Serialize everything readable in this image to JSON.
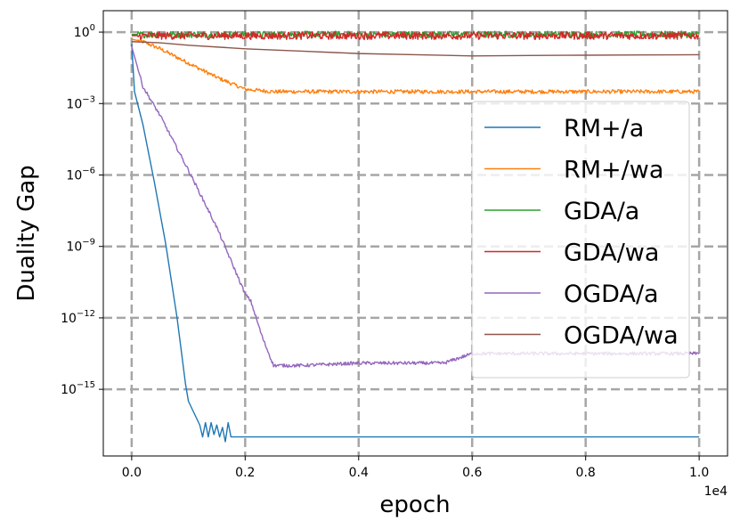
{
  "chart_data": {
    "type": "line",
    "xlabel": "epoch",
    "ylabel": "Duality Gap",
    "x_offset_text": "1e4",
    "yscale": "log",
    "xlim": [
      -0.05,
      1.05
    ],
    "ylim_log10": [
      -17.8,
      0.9
    ],
    "grid": true,
    "legend_placement": "right",
    "x_ticks": [
      {
        "value": 0.0,
        "label": "0.0"
      },
      {
        "value": 0.2,
        "label": "0.2"
      },
      {
        "value": 0.4,
        "label": "0.4"
      },
      {
        "value": 0.6,
        "label": "0.6"
      },
      {
        "value": 0.8,
        "label": "0.8"
      },
      {
        "value": 1.0,
        "label": "1.0"
      }
    ],
    "y_ticks": [
      {
        "exp": 0,
        "base": "10",
        "sup": "0"
      },
      {
        "exp": -3,
        "base": "10",
        "sup": "−3"
      },
      {
        "exp": -6,
        "base": "10",
        "sup": "−6"
      },
      {
        "exp": -9,
        "base": "10",
        "sup": "−9"
      },
      {
        "exp": -12,
        "base": "10",
        "sup": "−12"
      },
      {
        "exp": -15,
        "base": "10",
        "sup": "−15"
      }
    ],
    "series": [
      {
        "name": "RM+/a",
        "color": "#1f77b4",
        "points": [
          [
            0.0,
            -0.5
          ],
          [
            0.005,
            -2.5
          ],
          [
            0.02,
            -3.9
          ],
          [
            0.04,
            -6.3
          ],
          [
            0.06,
            -8.9
          ],
          [
            0.08,
            -12.0
          ],
          [
            0.095,
            -14.8
          ],
          [
            0.1,
            -15.5
          ],
          [
            0.11,
            -16.0
          ],
          [
            0.12,
            -16.5
          ],
          [
            0.125,
            -17.0
          ],
          [
            0.13,
            -16.4
          ],
          [
            0.135,
            -17.0
          ],
          [
            0.14,
            -16.4
          ],
          [
            0.145,
            -16.9
          ],
          [
            0.15,
            -16.5
          ],
          [
            0.155,
            -17.0
          ],
          [
            0.16,
            -16.6
          ],
          [
            0.165,
            -17.2
          ],
          [
            0.17,
            -16.4
          ],
          [
            0.175,
            -17.0
          ],
          [
            0.18,
            -17.0
          ],
          [
            1.0,
            -17.0
          ]
        ]
      },
      {
        "name": "RM+/wa",
        "color": "#ff7f0e",
        "points": [
          [
            0.0,
            -0.3
          ],
          [
            0.02,
            -0.4
          ],
          [
            0.05,
            -0.7
          ],
          [
            0.1,
            -1.3
          ],
          [
            0.15,
            -1.9
          ],
          [
            0.2,
            -2.4
          ],
          [
            0.25,
            -2.5
          ],
          [
            1.0,
            -2.5
          ]
        ]
      },
      {
        "name": "GDA/a",
        "color": "#2ca02c",
        "points": [
          [
            0.0,
            -0.1
          ],
          [
            1.0,
            -0.1
          ]
        ]
      },
      {
        "name": "GDA/wa",
        "color": "#d62728",
        "points": [
          [
            0.0,
            -0.15
          ],
          [
            1.0,
            -0.15
          ]
        ]
      },
      {
        "name": "OGDA/a",
        "color": "#9467bd",
        "points": [
          [
            0.0,
            -0.6
          ],
          [
            0.02,
            -2.3
          ],
          [
            0.05,
            -3.5
          ],
          [
            0.1,
            -5.8
          ],
          [
            0.15,
            -8.2
          ],
          [
            0.2,
            -11.0
          ],
          [
            0.21,
            -11.3
          ],
          [
            0.23,
            -12.8
          ],
          [
            0.25,
            -14.0
          ],
          [
            0.3,
            -14.0
          ],
          [
            0.4,
            -13.9
          ],
          [
            0.45,
            -13.9
          ],
          [
            0.55,
            -13.9
          ],
          [
            0.6,
            -13.5
          ],
          [
            0.7,
            -13.5
          ],
          [
            0.8,
            -13.5
          ],
          [
            0.9,
            -13.5
          ],
          [
            1.0,
            -13.5
          ]
        ]
      },
      {
        "name": "OGDA/wa",
        "color": "#8c564b",
        "points": [
          [
            0.0,
            -0.4
          ],
          [
            0.05,
            -0.45
          ],
          [
            0.1,
            -0.55
          ],
          [
            0.2,
            -0.7
          ],
          [
            0.3,
            -0.8
          ],
          [
            0.4,
            -0.9
          ],
          [
            0.5,
            -0.95
          ],
          [
            0.6,
            -1.0
          ],
          [
            0.7,
            -0.98
          ],
          [
            0.8,
            -0.97
          ],
          [
            0.9,
            -0.96
          ],
          [
            1.0,
            -0.95
          ]
        ]
      }
    ]
  }
}
